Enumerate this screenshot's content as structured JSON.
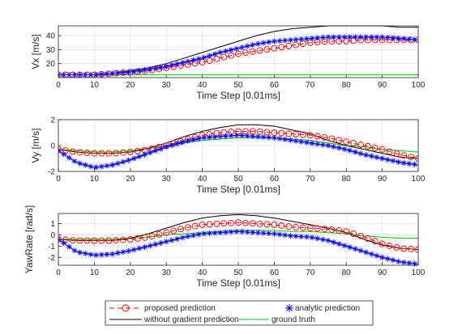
{
  "chart_data": [
    {
      "type": "line",
      "xlabel": "Time Step [0.01ms]",
      "ylabel": "Vx [m/s]",
      "xlim": [
        0,
        100
      ],
      "ylim": [
        10,
        47
      ],
      "xticks": [
        "0",
        "10",
        "20",
        "30",
        "40",
        "50",
        "60",
        "70",
        "80",
        "90",
        "100"
      ],
      "yticks": [
        "20",
        "30",
        "40"
      ],
      "ytick_values": [
        20,
        30,
        40
      ],
      "grid": true,
      "x": [
        0,
        5,
        10,
        15,
        20,
        25,
        30,
        35,
        40,
        45,
        50,
        55,
        60,
        65,
        70,
        75,
        80,
        85,
        90,
        95,
        100
      ],
      "series": [
        {
          "name": "proposed prediction",
          "values": [
            12,
            12,
            12,
            13,
            14,
            15,
            17,
            19,
            21,
            24,
            27,
            29,
            31,
            33,
            35,
            36,
            36,
            37,
            37,
            37,
            37
          ]
        },
        {
          "name": "analytic prediction",
          "values": [
            12,
            12,
            12,
            13,
            14,
            16,
            18,
            21,
            24,
            28,
            31,
            34,
            36,
            37,
            38,
            39,
            39,
            39,
            39,
            38,
            37
          ]
        },
        {
          "name": "without gradient prediction",
          "values": [
            12,
            12,
            12,
            13,
            15,
            17,
            20,
            24,
            28,
            32,
            36,
            40,
            43,
            45,
            46,
            47,
            47,
            47,
            47,
            46,
            46
          ]
        },
        {
          "name": "ground truth",
          "values": [
            12,
            12,
            12,
            12,
            12,
            12,
            12,
            12,
            12,
            12,
            12,
            12,
            12,
            12,
            12,
            12,
            12,
            12,
            12,
            12,
            12
          ]
        }
      ]
    },
    {
      "type": "line",
      "xlabel": "Time Step [0.01ms]",
      "ylabel": "Vy [m/s]",
      "xlim": [
        0,
        100
      ],
      "ylim": [
        -2,
        2
      ],
      "xticks": [
        "0",
        "10",
        "20",
        "30",
        "40",
        "50",
        "60",
        "70",
        "80",
        "90",
        "100"
      ],
      "yticks": [
        "-2",
        "0",
        "2"
      ],
      "ytick_values": [
        -2,
        0,
        2
      ],
      "grid": true,
      "x": [
        0,
        5,
        10,
        15,
        20,
        25,
        30,
        35,
        40,
        45,
        50,
        55,
        60,
        65,
        70,
        75,
        80,
        85,
        90,
        95,
        100
      ],
      "series": [
        {
          "name": "proposed prediction",
          "values": [
            -0.3,
            -0.5,
            -0.6,
            -0.6,
            -0.5,
            -0.3,
            0.0,
            0.4,
            0.8,
            1.0,
            1.1,
            1.1,
            1.0,
            0.9,
            0.8,
            0.6,
            0.3,
            0.0,
            -0.3,
            -0.7,
            -1.0
          ]
        },
        {
          "name": "analytic prediction",
          "values": [
            -0.4,
            -1.3,
            -1.7,
            -1.5,
            -1.1,
            -0.6,
            -0.1,
            0.3,
            0.6,
            0.7,
            0.8,
            0.7,
            0.6,
            0.4,
            0.2,
            0.0,
            -0.3,
            -0.7,
            -1.0,
            -1.3,
            -1.5
          ]
        },
        {
          "name": "without gradient prediction",
          "values": [
            -0.3,
            -0.5,
            -0.6,
            -0.6,
            -0.5,
            -0.2,
            0.2,
            0.7,
            1.1,
            1.4,
            1.6,
            1.6,
            1.5,
            1.2,
            0.9,
            0.4,
            0.0,
            -0.3,
            -0.6,
            -0.9,
            -1.0
          ]
        },
        {
          "name": "ground truth",
          "values": [
            -0.3,
            -0.4,
            -0.5,
            -0.5,
            -0.4,
            -0.2,
            0.0,
            0.2,
            0.4,
            0.5,
            0.6,
            0.6,
            0.6,
            0.5,
            0.4,
            0.2,
            0.0,
            -0.1,
            -0.3,
            -0.4,
            -0.5
          ]
        }
      ]
    },
    {
      "type": "line",
      "xlabel": "Time Step [0.01ms]",
      "ylabel": "YawRate [rad/s]",
      "xlim": [
        0,
        100
      ],
      "ylim": [
        -2.7,
        1.9
      ],
      "xticks": [
        "0",
        "10",
        "20",
        "30",
        "40",
        "50",
        "60",
        "70",
        "80",
        "90",
        "100"
      ],
      "yticks": [
        "-2",
        "-1",
        "0",
        "1"
      ],
      "ytick_values": [
        -2,
        -1,
        0,
        1
      ],
      "grid": true,
      "x": [
        0,
        5,
        10,
        15,
        20,
        25,
        30,
        35,
        40,
        45,
        50,
        55,
        60,
        65,
        70,
        75,
        80,
        85,
        90,
        95,
        100
      ],
      "series": [
        {
          "name": "proposed prediction",
          "values": [
            -0.4,
            -0.5,
            -0.5,
            -0.5,
            -0.4,
            -0.2,
            0.2,
            0.6,
            0.9,
            1.0,
            1.1,
            1.0,
            0.9,
            0.7,
            0.6,
            0.5,
            0.3,
            -0.2,
            -0.8,
            -1.2,
            -1.3
          ]
        },
        {
          "name": "analytic prediction",
          "values": [
            -0.4,
            -1.5,
            -1.8,
            -1.7,
            -1.4,
            -1.0,
            -0.6,
            -0.2,
            0.1,
            0.2,
            0.3,
            0.2,
            0.1,
            -0.1,
            -0.2,
            -0.5,
            -1.0,
            -1.5,
            -2.0,
            -2.4,
            -2.6
          ]
        },
        {
          "name": "without gradient prediction",
          "values": [
            -0.4,
            -0.5,
            -0.5,
            -0.5,
            -0.3,
            0.1,
            0.6,
            1.1,
            1.5,
            1.7,
            1.8,
            1.7,
            1.5,
            1.2,
            0.9,
            0.6,
            0.2,
            -0.4,
            -0.9,
            -1.2,
            -1.3
          ]
        },
        {
          "name": "ground truth",
          "values": [
            -0.4,
            -0.4,
            -0.4,
            -0.4,
            -0.3,
            -0.2,
            0.0,
            0.1,
            0.2,
            0.3,
            0.4,
            0.4,
            0.4,
            0.3,
            0.3,
            0.2,
            0.1,
            -0.1,
            -0.2,
            -0.3,
            -0.3
          ]
        }
      ]
    }
  ],
  "legend": {
    "position": "bottom",
    "entries": [
      {
        "label": "proposed prediction",
        "color": "#ff0000",
        "style": "dashed-circle"
      },
      {
        "label": "analytic prediction",
        "color": "#0000ff",
        "style": "asterisk"
      },
      {
        "label": "without gradient prediction",
        "color": "#000000",
        "style": "solid"
      },
      {
        "label": "ground truth",
        "color": "#00cc00",
        "style": "solid"
      }
    ]
  },
  "colors": {
    "proposed": "#ff0000",
    "analytic": "#0000ff",
    "without_gradient": "#000000",
    "ground_truth": "#00cc00",
    "grid": "#dcdcdc",
    "axis": "#262626"
  }
}
